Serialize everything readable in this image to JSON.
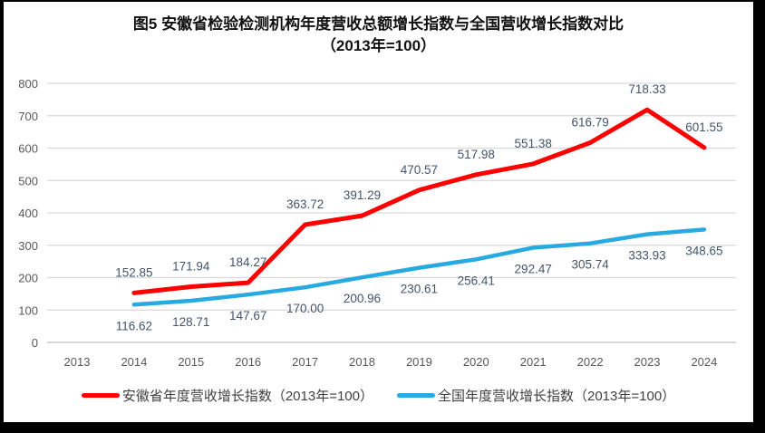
{
  "title": {
    "line1": "图5  安徽省检验检测机构年度营收总额增长指数与全国营收增长指数对比",
    "line2": "（2013年=100）"
  },
  "chart_data": {
    "type": "line",
    "categories": [
      "2013",
      "2014",
      "2015",
      "2016",
      "2017",
      "2018",
      "2019",
      "2020",
      "2021",
      "2022",
      "2023",
      "2024"
    ],
    "series": [
      {
        "key": "anhui",
        "name": "安徽省年度营收增长指数（2013年=100）",
        "color": "#FE0000",
        "label_position": "above",
        "values": [
          null,
          152.85,
          171.94,
          184.27,
          363.72,
          391.29,
          470.57,
          517.98,
          551.38,
          616.79,
          718.33,
          601.55
        ]
      },
      {
        "key": "national",
        "name": "全国年度营收增长指数（2013年=100）",
        "color": "#27AAE1",
        "label_position": "below",
        "values": [
          null,
          116.62,
          128.71,
          147.67,
          170.0,
          200.96,
          230.61,
          256.41,
          292.47,
          305.74,
          333.93,
          348.65
        ]
      }
    ],
    "ylim": [
      0,
      800
    ],
    "yticks": [
      0,
      100,
      200,
      300,
      400,
      500,
      600,
      700,
      800
    ],
    "grid": true,
    "legend_position": "bottom"
  },
  "style": {
    "border_color": "#000000",
    "background": "#ffffff",
    "grid_color": "#D9D9D9",
    "axis_line_color": "#BFBFBF",
    "tick_color": "#595959",
    "data_label_color": "#44546A",
    "legend_text_color": "#404040",
    "title_color": "#111111"
  }
}
